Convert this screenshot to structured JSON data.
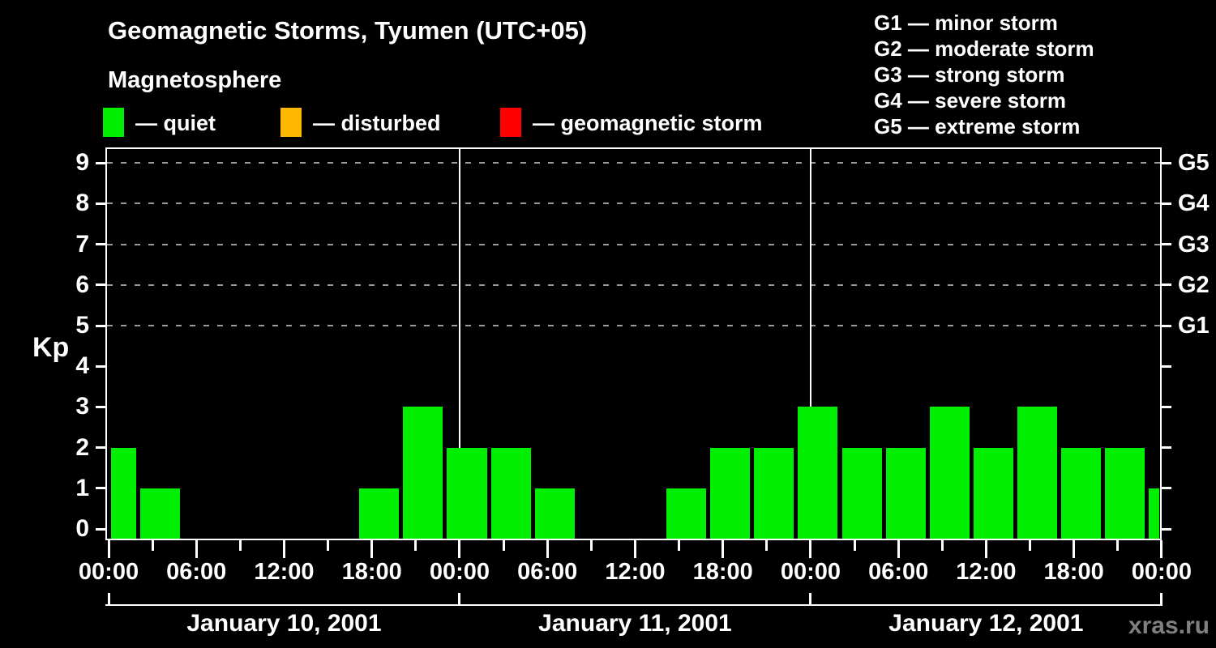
{
  "page": {
    "title": "Geomagnetic Storms, Tyumen (UTC+05)",
    "subtitle": "Magnetosphere",
    "kp_axis_label": "Kp",
    "watermark": "xras.ru"
  },
  "legend": {
    "items": [
      {
        "name": "quiet",
        "label": "— quiet",
        "color": "#00EE00"
      },
      {
        "name": "disturbed",
        "label": "— disturbed",
        "color": "#FFB800"
      },
      {
        "name": "geomagnetic-storm",
        "label": "— geomagnetic storm",
        "color": "#FF0000"
      }
    ]
  },
  "g_legend": {
    "items": [
      "G1 — minor storm",
      "G2 — moderate storm",
      "G3 — strong storm",
      "G4 — severe storm",
      "G5 — extreme storm"
    ]
  },
  "chart_data": {
    "type": "bar",
    "title": "Geomagnetic Storms, Tyumen (UTC+05)",
    "subtitle": "Magnetosphere",
    "ylabel": "Kp",
    "ylim": [
      0,
      9
    ],
    "yticks": [
      0,
      1,
      2,
      3,
      4,
      5,
      6,
      7,
      8,
      9
    ],
    "grid": "dashed horizontal at storm levels",
    "grid_kp_levels": [
      5,
      6,
      7,
      8,
      9
    ],
    "right_axis_labels": [
      {
        "kp": 5,
        "label": "G1"
      },
      {
        "kp": 6,
        "label": "G2"
      },
      {
        "kp": 7,
        "label": "G3"
      },
      {
        "kp": 8,
        "label": "G4"
      },
      {
        "kp": 9,
        "label": "G5"
      }
    ],
    "x_total_hours": 72,
    "xtick_interval_hours": 3,
    "xlabel_interval_hours": 6,
    "xtick_labels": [
      "00:00",
      "06:00",
      "12:00",
      "18:00",
      "00:00",
      "06:00",
      "12:00",
      "18:00",
      "00:00",
      "06:00",
      "12:00",
      "18:00",
      "00:00"
    ],
    "day_boundaries_hours": [
      0,
      24,
      48,
      72
    ],
    "days": [
      {
        "label": "January 10, 2001",
        "start_hour": 0,
        "end_hour": 24
      },
      {
        "label": "January 11, 2001",
        "start_hour": 24,
        "end_hour": 48
      },
      {
        "label": "January 12, 2001",
        "start_hour": 48,
        "end_hour": 72
      }
    ],
    "bars": [
      {
        "start_hour": 0,
        "end_hour": 2,
        "kp": 2
      },
      {
        "start_hour": 2,
        "end_hour": 5,
        "kp": 1
      },
      {
        "start_hour": 5,
        "end_hour": 8,
        "kp": 0
      },
      {
        "start_hour": 8,
        "end_hour": 11,
        "kp": 0
      },
      {
        "start_hour": 11,
        "end_hour": 14,
        "kp": 0
      },
      {
        "start_hour": 14,
        "end_hour": 17,
        "kp": 0
      },
      {
        "start_hour": 17,
        "end_hour": 20,
        "kp": 1
      },
      {
        "start_hour": 20,
        "end_hour": 23,
        "kp": 3
      },
      {
        "start_hour": 23,
        "end_hour": 26,
        "kp": 2
      },
      {
        "start_hour": 26,
        "end_hour": 29,
        "kp": 2
      },
      {
        "start_hour": 29,
        "end_hour": 32,
        "kp": 1
      },
      {
        "start_hour": 32,
        "end_hour": 35,
        "kp": 0
      },
      {
        "start_hour": 35,
        "end_hour": 38,
        "kp": 0
      },
      {
        "start_hour": 38,
        "end_hour": 41,
        "kp": 1
      },
      {
        "start_hour": 41,
        "end_hour": 44,
        "kp": 2
      },
      {
        "start_hour": 44,
        "end_hour": 47,
        "kp": 2
      },
      {
        "start_hour": 47,
        "end_hour": 50,
        "kp": 3
      },
      {
        "start_hour": 50,
        "end_hour": 53,
        "kp": 2
      },
      {
        "start_hour": 53,
        "end_hour": 56,
        "kp": 2
      },
      {
        "start_hour": 56,
        "end_hour": 59,
        "kp": 3
      },
      {
        "start_hour": 59,
        "end_hour": 62,
        "kp": 2
      },
      {
        "start_hour": 62,
        "end_hour": 65,
        "kp": 3
      },
      {
        "start_hour": 65,
        "end_hour": 68,
        "kp": 2
      },
      {
        "start_hour": 68,
        "end_hour": 71,
        "kp": 2
      },
      {
        "start_hour": 71,
        "end_hour": 72,
        "kp": 1
      }
    ],
    "colors": {
      "quiet": "#00EE00",
      "disturbed": "#FFB800",
      "storm": "#FF0000",
      "background": "#000000",
      "axis": "#FFFFFF",
      "grid": "#9A9A9A",
      "watermark": "#808080"
    },
    "color_rules": {
      "quiet_max_kp": 3,
      "disturbed_kp": 4,
      "storm_min_kp": 5
    },
    "legend_position": "top"
  }
}
